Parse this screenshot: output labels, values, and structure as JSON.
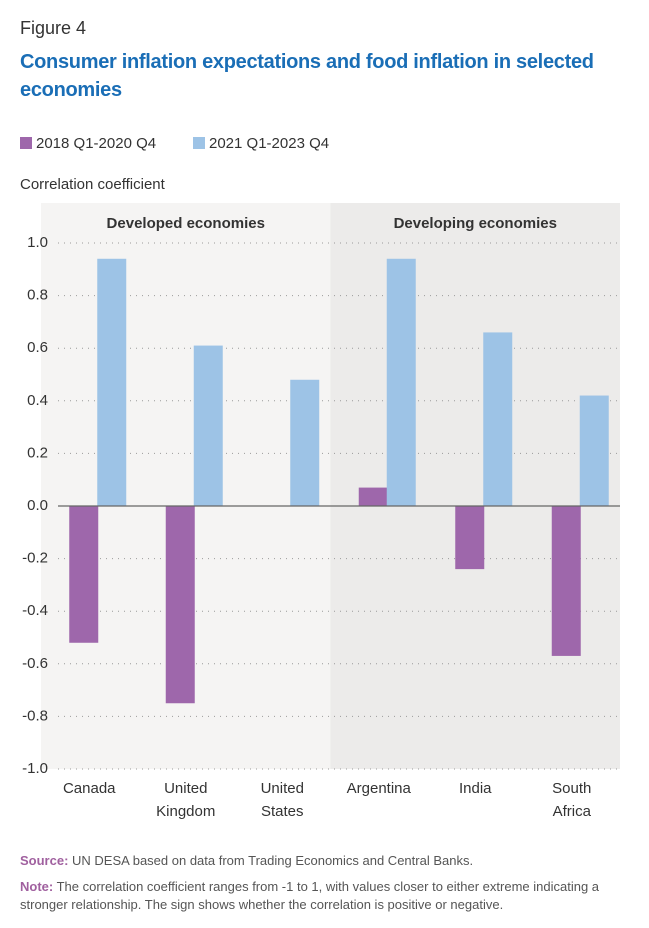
{
  "figure_label": "Figure 4",
  "chart_data": {
    "type": "bar",
    "title": "Consumer inflation expectations and food inflation in selected economies",
    "y_label": "Correlation coefficient",
    "group_labels": [
      "Developed economies",
      "Developing economies"
    ],
    "categories": [
      "Canada",
      "United Kingdom",
      "United States",
      "Argentina",
      "India",
      "South Africa"
    ],
    "series": [
      {
        "name": "2018 Q1-2020 Q4",
        "color": "#9e67ab",
        "values": [
          -0.52,
          -0.75,
          null,
          0.07,
          -0.24,
          -0.57
        ]
      },
      {
        "name": "2021 Q1-2023 Q4",
        "color": "#9dc3e6",
        "values": [
          0.94,
          0.61,
          0.48,
          0.94,
          0.66,
          0.42
        ]
      }
    ],
    "ylim": [
      -1,
      1
    ],
    "yticks": [
      {
        "value": -1,
        "label": "-1.0"
      },
      -0.8,
      -0.6,
      -0.4,
      -0.2,
      {
        "value": 0,
        "label": "0.0"
      },
      0.2,
      0.4,
      0.6,
      0.8,
      {
        "value": 1,
        "label": "1.0"
      }
    ],
    "grid": true
  },
  "source": {
    "label": "Source:",
    "text": "UN DESA based on data from Trading Economics and Central Banks."
  },
  "note": {
    "label": "Note:",
    "text": "The correlation coefficient ranges from -1 to 1, with values closer to either extreme indicating a stronger relationship. The sign shows whether the correlation is positive or negative."
  }
}
